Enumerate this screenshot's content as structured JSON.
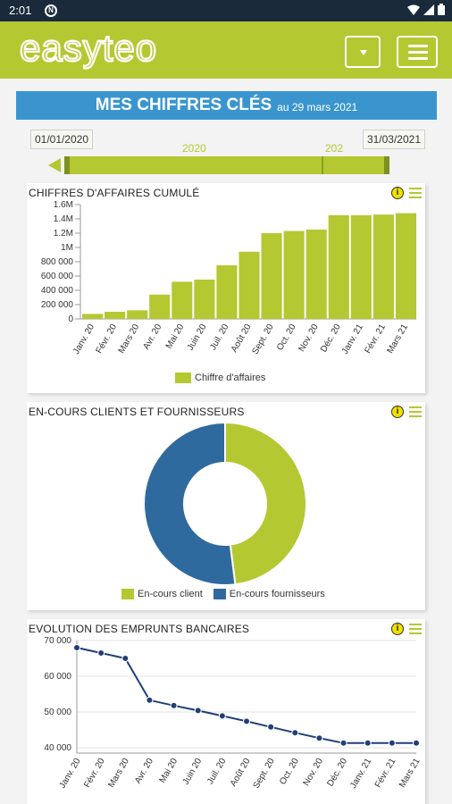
{
  "status_bar": {
    "time": "2:01"
  },
  "app": {
    "brand": "easyteo"
  },
  "banner": {
    "title": "MES CHIFFRES CLÉS",
    "subtitle": "au 29 mars 2021"
  },
  "period": {
    "start_date": "01/01/2020",
    "end_date": "31/03/2021",
    "segment_labels": [
      "2020",
      "202"
    ]
  },
  "colors": {
    "green": "#b4c831",
    "blue": "#2e6a9e",
    "banner": "#3a95cf",
    "dark_navy": "#1f3f7a"
  },
  "icons": [
    "info-icon",
    "chart-menu-icon",
    "dropdown-icon",
    "hamburger-menu-icon"
  ],
  "chart_data": [
    {
      "type": "bar",
      "title": "CHIFFRES D'AFFAIRES CUMULÉ",
      "categories": [
        "Janv. 20",
        "Févr. 20",
        "Mars 20",
        "Avr. 20",
        "Mai 20",
        "Juin 20",
        "Juil. 20",
        "Août 20",
        "Sept. 20",
        "Oct. 20",
        "Nov. 20",
        "Déc. 20",
        "Janv. 21",
        "Févr. 21",
        "Mars 21"
      ],
      "series": [
        {
          "name": "Chiffre d'affaires",
          "values": [
            70000,
            100000,
            120000,
            340000,
            520000,
            550000,
            750000,
            940000,
            1200000,
            1230000,
            1250000,
            1450000,
            1450000,
            1460000,
            1480000
          ]
        }
      ],
      "y_ticks": [
        "0",
        "200 000",
        "400 000",
        "600 000",
        "800 000",
        "1M",
        "1.2M",
        "1.4M",
        "1.6M"
      ],
      "ylim": [
        0,
        1600000
      ],
      "legend": "bottom"
    },
    {
      "type": "pie",
      "title": "EN-COURS CLIENTS ET FOURNISSEURS",
      "donut": true,
      "slices": [
        {
          "name": "En-cours client",
          "value": 48
        },
        {
          "name": "En-cours fournisseurs",
          "value": 52
        }
      ],
      "legend": "bottom"
    },
    {
      "type": "line",
      "title": "EVOLUTION DES EMPRUNTS BANCAIRES",
      "categories": [
        "Janv. 20",
        "Févr. 20",
        "Mars 20",
        "Avr. 20",
        "Mai 20",
        "Juin 20",
        "Juil. 20",
        "Août 20",
        "Sept. 20",
        "Oct. 20",
        "Nov. 20",
        "Déc. 20",
        "Janv. 21",
        "Févr. 21",
        "Mars 21"
      ],
      "series": [
        {
          "values": [
            68000,
            66500,
            65000,
            53300,
            51800,
            50400,
            48900,
            47400,
            45800,
            44200,
            42700,
            41300,
            41300,
            41300,
            41300
          ]
        }
      ],
      "y_ticks": [
        "40 000",
        "50 000",
        "60 000",
        "70 000"
      ],
      "ylim": [
        38500,
        70000
      ]
    }
  ]
}
